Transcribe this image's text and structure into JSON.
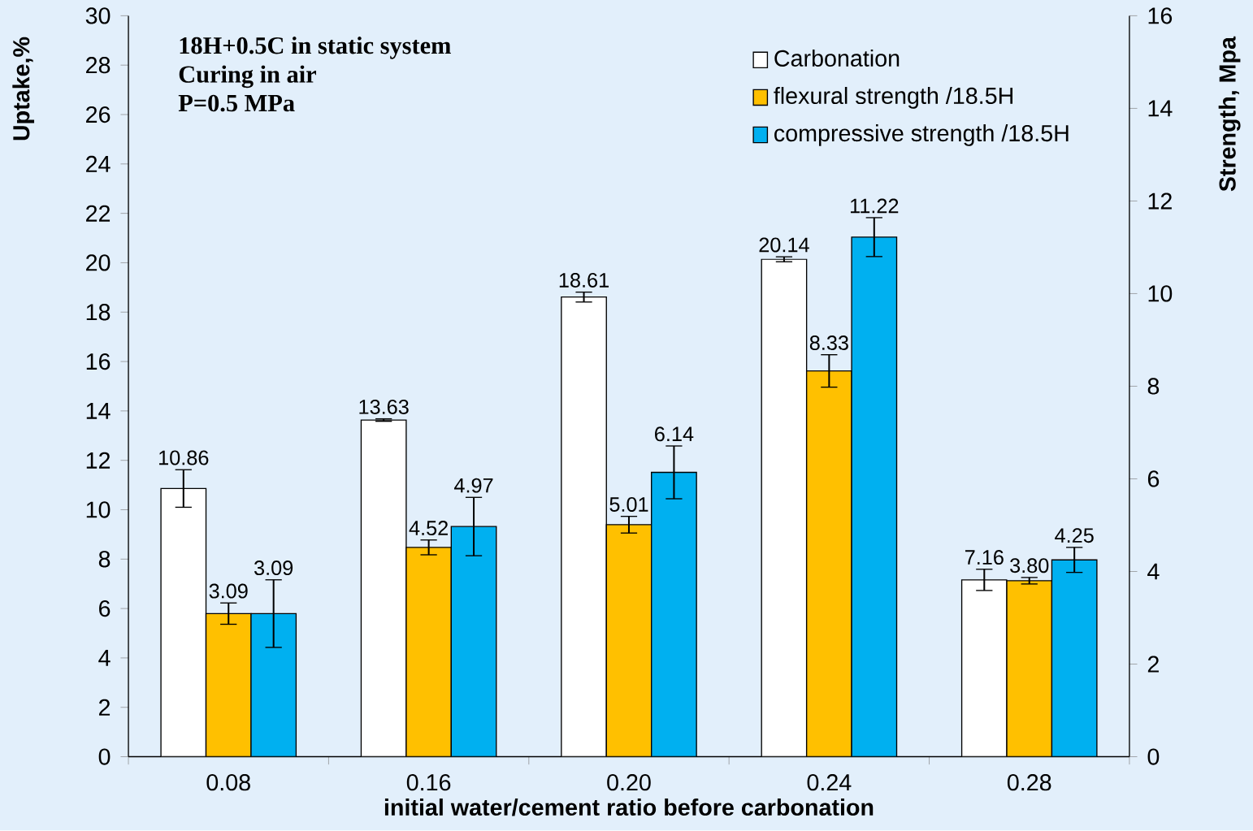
{
  "chart_data": {
    "type": "bar",
    "xlabel": "initial water/cement ratio before carbonation",
    "ylabel": "Uptake,%",
    "y2label": "Strength, Mpa",
    "categories": [
      "0.08",
      "0.16",
      "0.20",
      "0.24",
      "0.28"
    ],
    "series": [
      {
        "name": "Carbonation",
        "color": "#ffffff",
        "values": [
          10.86,
          13.63,
          18.61,
          20.14,
          7.16
        ],
        "errors": [
          0.76,
          0.05,
          0.2,
          0.1,
          0.43
        ],
        "value_labels": [
          "10.86",
          "13.63",
          "18.61",
          "20.14",
          "7.16"
        ]
      },
      {
        "name": "flexural strength /18.5H",
        "color": "#ffc000",
        "axis": "y2",
        "values": [
          3.09,
          4.52,
          5.01,
          8.33,
          3.8
        ],
        "errors": [
          0.23,
          0.16,
          0.18,
          0.35,
          0.07
        ],
        "value_labels": [
          "3.09",
          "4.52",
          "5.01",
          "8.33",
          "3.80"
        ]
      },
      {
        "name": "compressive strength /18.5H",
        "color": "#00b0f0",
        "axis": "y2",
        "values": [
          3.09,
          4.97,
          6.14,
          11.22,
          4.25
        ],
        "errors": [
          0.73,
          0.63,
          0.57,
          0.42,
          0.27
        ],
        "value_labels": [
          "3.09",
          "4.97",
          "6.14",
          "11.22",
          "4.25"
        ]
      }
    ],
    "ylim": [
      0,
      30
    ],
    "yticks": [
      0,
      2,
      4,
      6,
      8,
      10,
      12,
      14,
      16,
      18,
      20,
      22,
      24,
      26,
      28,
      30
    ],
    "y2lim": [
      0,
      16
    ],
    "y2ticks": [
      0,
      2,
      4,
      6,
      8,
      10,
      12,
      14,
      16
    ],
    "annotations": [
      "18H+0.5C in static system",
      "Curing  in air",
      "P=0.5 MPa"
    ],
    "legend": "top right",
    "grid": false
  }
}
